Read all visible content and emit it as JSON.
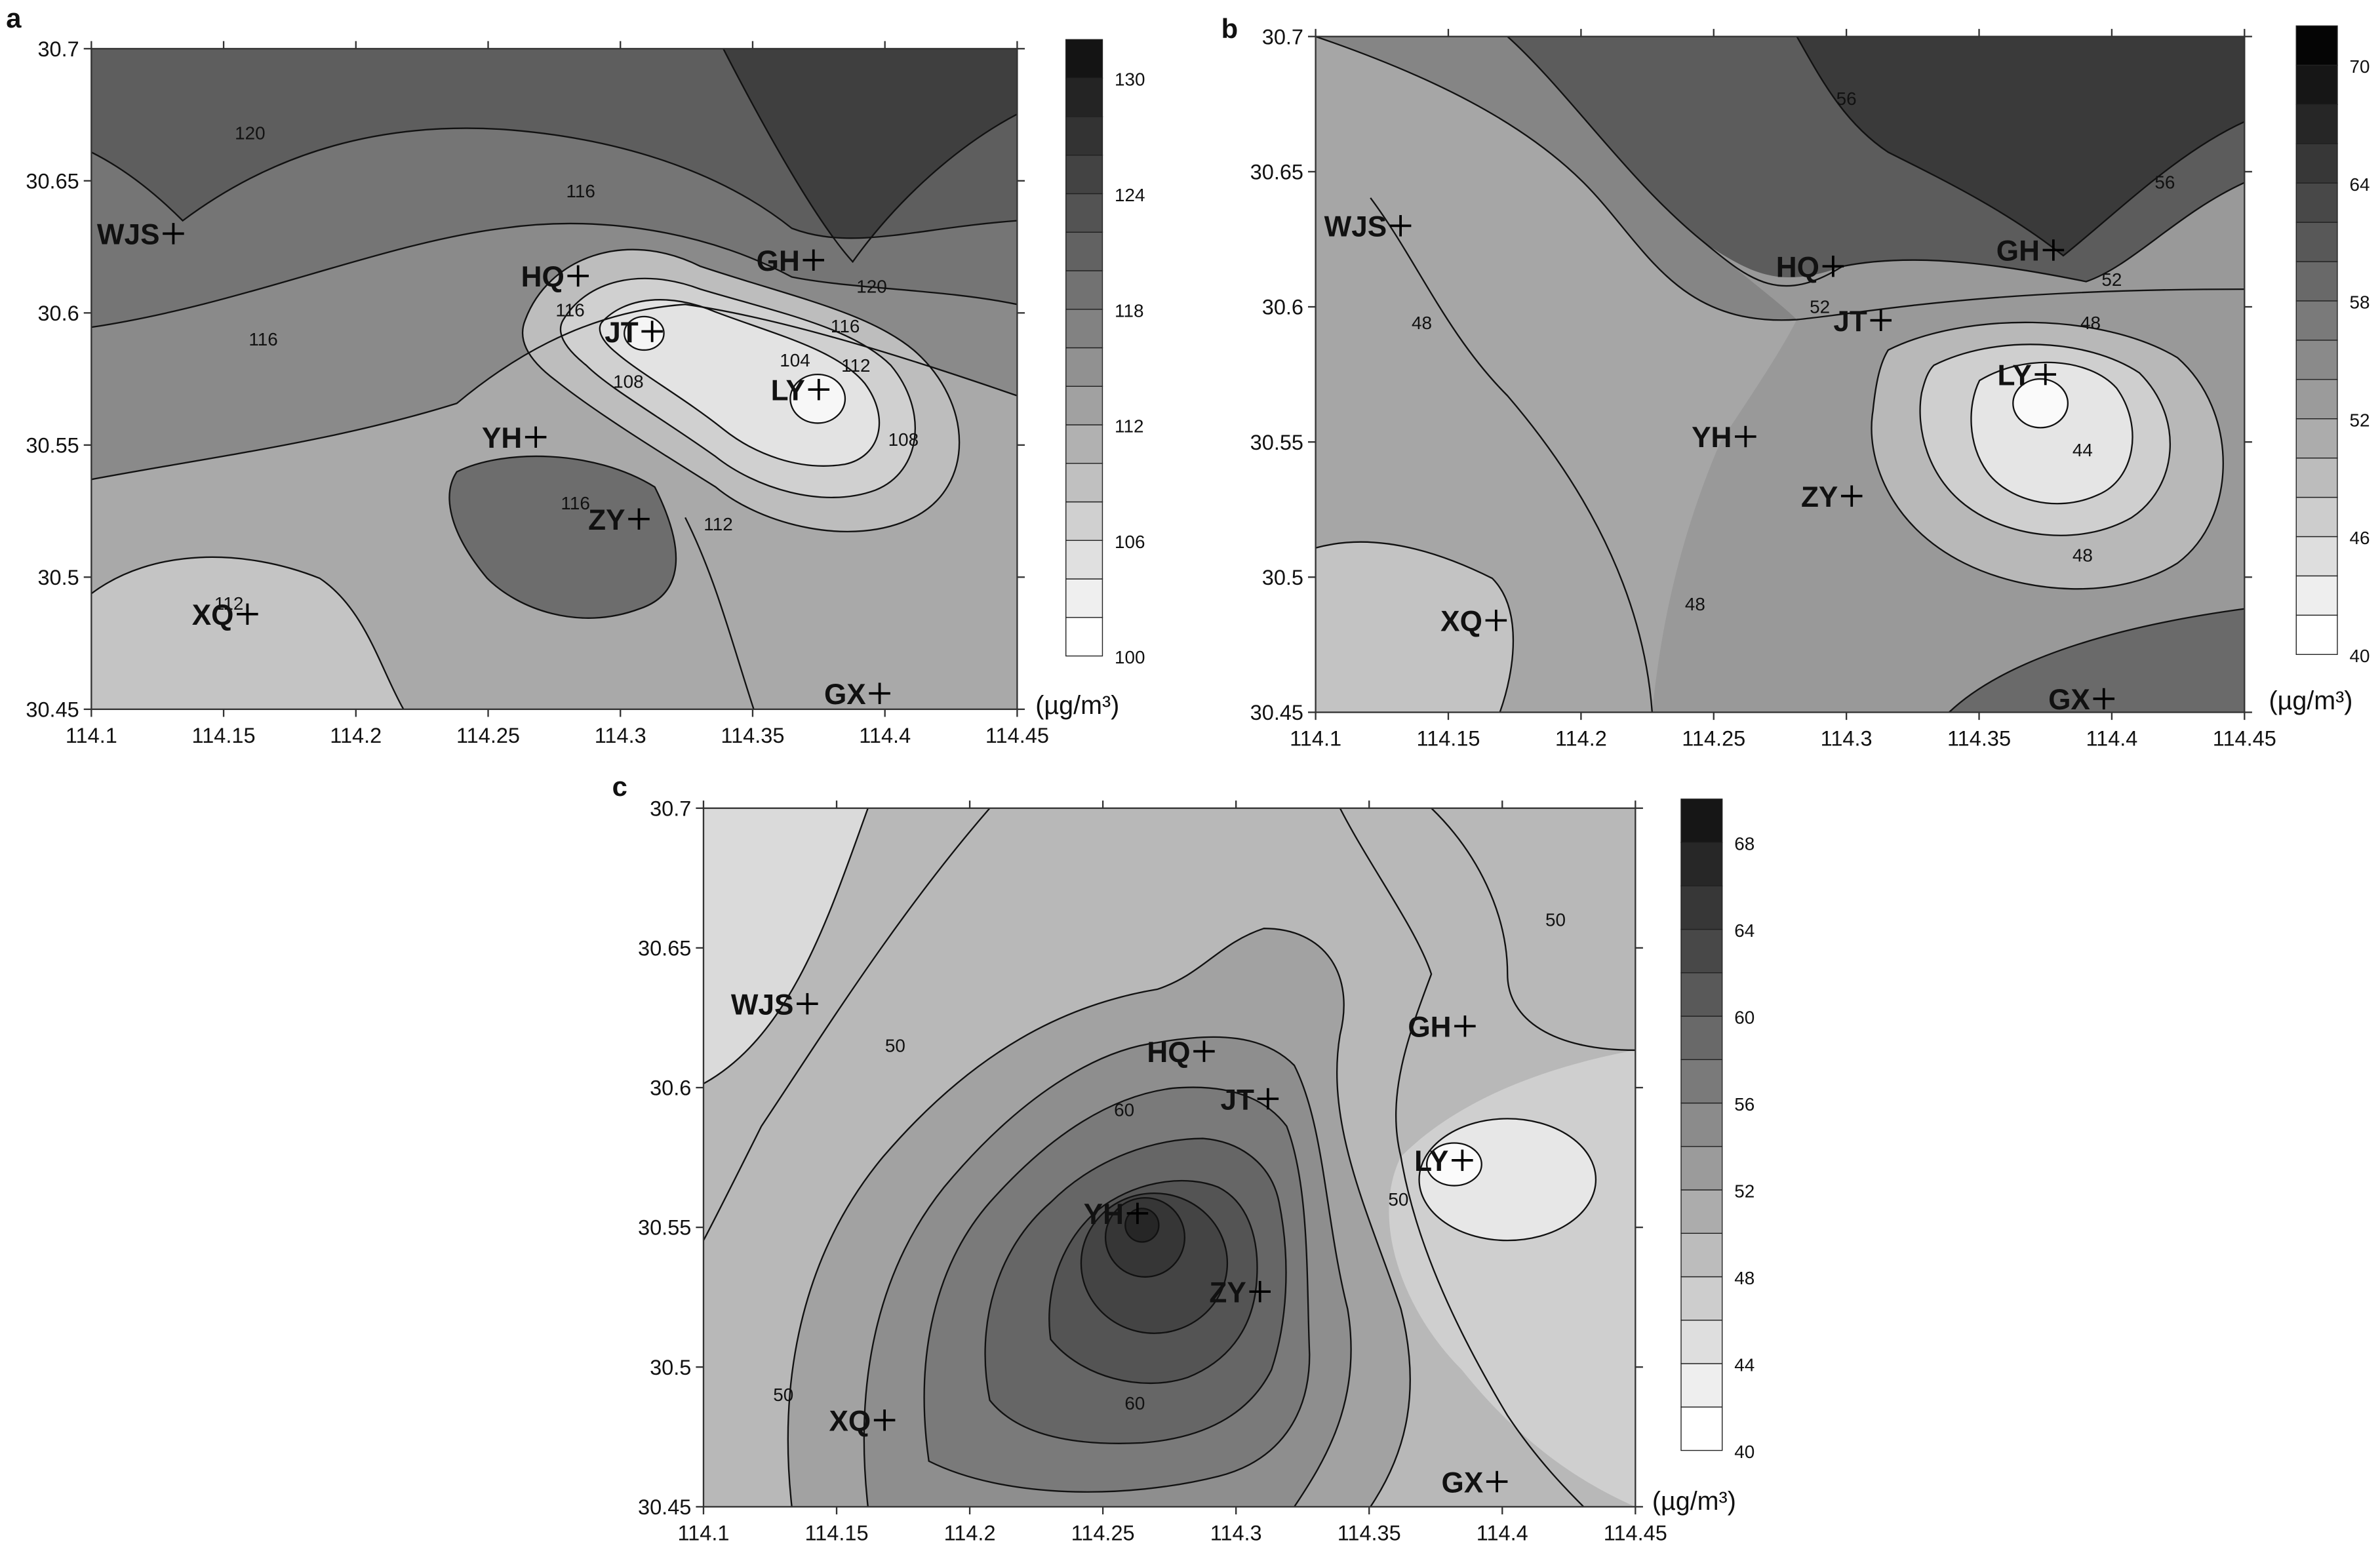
{
  "chart_data": [
    {
      "panel": "a",
      "type": "heatmap",
      "title": "",
      "xlabel": "",
      "ylabel": "",
      "xlim": [
        114.1,
        114.45
      ],
      "ylim": [
        30.45,
        30.7
      ],
      "xticks": [
        "114.1",
        "114.15",
        "114.2",
        "114.25",
        "114.3",
        "114.35",
        "114.4",
        "114.45"
      ],
      "yticks": [
        "30.45",
        "30.5",
        "30.55",
        "30.6",
        "30.65",
        "30.7"
      ],
      "colorbar": {
        "unit": "(µg/m³)",
        "min": 100,
        "max": 132,
        "step": 2,
        "labels": [
          "100",
          "106",
          "112",
          "118",
          "124",
          "130"
        ],
        "low_color": "#ffffff",
        "high_color": "#141414"
      },
      "contour_labels": [
        {
          "text": "120",
          "x": 114.16,
          "y": 30.668
        },
        {
          "text": "116",
          "x": 114.285,
          "y": 30.646
        },
        {
          "text": "120",
          "x": 114.395,
          "y": 30.61
        },
        {
          "text": "116",
          "x": 114.385,
          "y": 30.595
        },
        {
          "text": "112",
          "x": 114.389,
          "y": 30.58
        },
        {
          "text": "116",
          "x": 114.165,
          "y": 30.59
        },
        {
          "text": "116",
          "x": 114.281,
          "y": 30.601
        },
        {
          "text": "104",
          "x": 114.366,
          "y": 30.582
        },
        {
          "text": "108",
          "x": 114.303,
          "y": 30.574
        },
        {
          "text": "108",
          "x": 114.407,
          "y": 30.552
        },
        {
          "text": "116",
          "x": 114.283,
          "y": 30.528
        },
        {
          "text": "112",
          "x": 114.337,
          "y": 30.52
        },
        {
          "text": "112",
          "x": 114.152,
          "y": 30.49
        }
      ],
      "sites": [
        {
          "name": "WJS",
          "x": 114.131,
          "y": 30.63
        },
        {
          "name": "HQ",
          "x": 114.284,
          "y": 30.614
        },
        {
          "name": "GH",
          "x": 114.373,
          "y": 30.62
        },
        {
          "name": "JT",
          "x": 114.312,
          "y": 30.593
        },
        {
          "name": "LY",
          "x": 114.375,
          "y": 30.571
        },
        {
          "name": "YH",
          "x": 114.268,
          "y": 30.553
        },
        {
          "name": "ZY",
          "x": 114.307,
          "y": 30.522
        },
        {
          "name": "XQ",
          "x": 114.159,
          "y": 30.486
        },
        {
          "name": "GX",
          "x": 114.398,
          "y": 30.456
        }
      ]
    },
    {
      "panel": "b",
      "type": "heatmap",
      "title": "",
      "xlabel": "",
      "ylabel": "",
      "xlim": [
        114.1,
        114.45
      ],
      "ylim": [
        30.45,
        30.7
      ],
      "xticks": [
        "114.1",
        "114.15",
        "114.2",
        "114.25",
        "114.3",
        "114.35",
        "114.4",
        "114.45"
      ],
      "yticks": [
        "30.45",
        "30.5",
        "30.55",
        "30.6",
        "30.65",
        "30.7"
      ],
      "colorbar": {
        "unit": "(µg/m³)",
        "min": 40,
        "max": 72,
        "step": 2,
        "labels": [
          "40",
          "46",
          "52",
          "58",
          "64",
          "70"
        ],
        "low_color": "#ffffff",
        "high_color": "#050505"
      },
      "contour_labels": [
        {
          "text": "56",
          "x": 114.3,
          "y": 30.677
        },
        {
          "text": "56",
          "x": 114.42,
          "y": 30.646
        },
        {
          "text": "52",
          "x": 114.4,
          "y": 30.61
        },
        {
          "text": "52",
          "x": 114.29,
          "y": 30.6
        },
        {
          "text": "48",
          "x": 114.392,
          "y": 30.594
        },
        {
          "text": "48",
          "x": 114.14,
          "y": 30.594
        },
        {
          "text": "44",
          "x": 114.389,
          "y": 30.547
        },
        {
          "text": "48",
          "x": 114.389,
          "y": 30.508
        },
        {
          "text": "48",
          "x": 114.243,
          "y": 30.49
        }
      ],
      "sites": [
        {
          "name": "WJS",
          "x": 114.132,
          "y": 30.63
        },
        {
          "name": "HQ",
          "x": 114.295,
          "y": 30.615
        },
        {
          "name": "GH",
          "x": 114.378,
          "y": 30.621
        },
        {
          "name": "JT",
          "x": 114.313,
          "y": 30.595
        },
        {
          "name": "LY",
          "x": 114.375,
          "y": 30.575
        },
        {
          "name": "YH",
          "x": 114.262,
          "y": 30.552
        },
        {
          "name": "ZY",
          "x": 114.302,
          "y": 30.53
        },
        {
          "name": "XQ",
          "x": 114.168,
          "y": 30.484
        },
        {
          "name": "GX",
          "x": 114.397,
          "y": 30.455
        }
      ]
    },
    {
      "panel": "c",
      "type": "heatmap",
      "title": "",
      "xlabel": "",
      "ylabel": "",
      "xlim": [
        114.1,
        114.45
      ],
      "ylim": [
        30.45,
        30.7
      ],
      "xticks": [
        "114.1",
        "114.15",
        "114.2",
        "114.25",
        "114.3",
        "114.35",
        "114.4",
        "114.45"
      ],
      "yticks": [
        "30.45",
        "30.5",
        "30.55",
        "30.6",
        "30.65",
        "30.7"
      ],
      "colorbar": {
        "unit": "(µg/m³)",
        "min": 40,
        "max": 70,
        "step": 2,
        "labels": [
          "40",
          "44",
          "48",
          "52",
          "56",
          "60",
          "64",
          "68"
        ],
        "low_color": "#ffffff",
        "high_color": "#161616"
      },
      "contour_labels": [
        {
          "text": "50",
          "x": 114.42,
          "y": 30.66
        },
        {
          "text": "50",
          "x": 114.172,
          "y": 30.615
        },
        {
          "text": "60",
          "x": 114.258,
          "y": 30.592
        },
        {
          "text": "50",
          "x": 114.361,
          "y": 30.56
        },
        {
          "text": "60",
          "x": 114.262,
          "y": 30.487
        },
        {
          "text": "50",
          "x": 114.13,
          "y": 30.49
        }
      ],
      "sites": [
        {
          "name": "WJS",
          "x": 114.139,
          "y": 30.63
        },
        {
          "name": "HQ",
          "x": 114.288,
          "y": 30.613
        },
        {
          "name": "GH",
          "x": 114.386,
          "y": 30.622
        },
        {
          "name": "JT",
          "x": 114.312,
          "y": 30.596
        },
        {
          "name": "LY",
          "x": 114.385,
          "y": 30.574
        },
        {
          "name": "YH",
          "x": 114.263,
          "y": 30.555
        },
        {
          "name": "ZY",
          "x": 114.309,
          "y": 30.527
        },
        {
          "name": "XQ",
          "x": 114.168,
          "y": 30.481
        },
        {
          "name": "GX",
          "x": 114.398,
          "y": 30.459
        }
      ]
    }
  ]
}
